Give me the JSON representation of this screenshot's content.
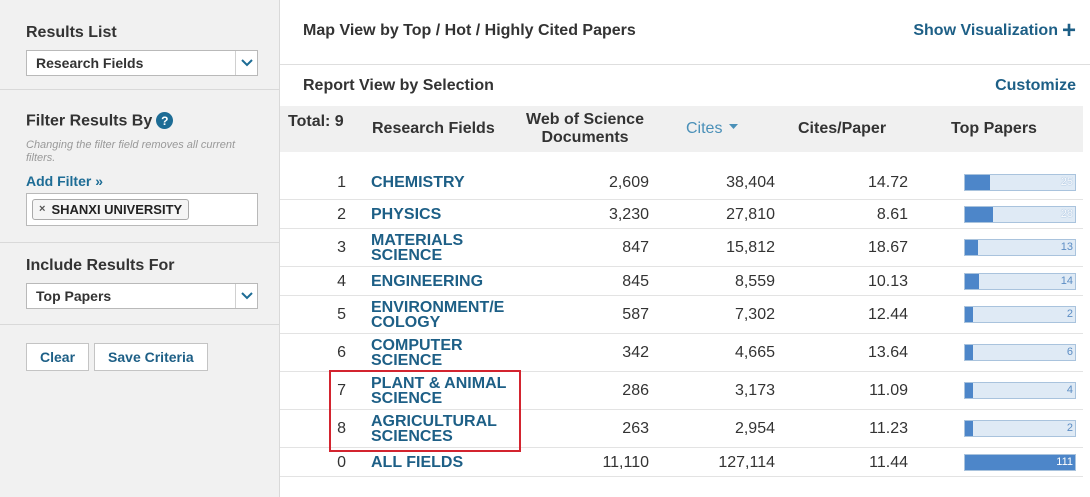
{
  "sidebar": {
    "results_list_title": "Results List",
    "results_list_value": "Research Fields",
    "filter_title": "Filter Results By",
    "help_glyph": "?",
    "filter_note": "Changing the filter field removes all current filters.",
    "add_filter": "Add Filter »",
    "filter_chip": "SHANXI UNIVERSITY",
    "filter_chip_remove": "×",
    "include_title": "Include Results For",
    "include_value": "Top Papers",
    "clear_label": "Clear",
    "save_label": "Save Criteria"
  },
  "main": {
    "map_view_title": "Map View by Top / Hot / Highly Cited Papers",
    "show_visualization": "Show Visualization",
    "plus_glyph": "+",
    "report_view_title": "Report View by Selection",
    "customize": "Customize"
  },
  "table": {
    "total": "Total: 9",
    "headers": {
      "research_fields": "Research Fields",
      "documents_line1": "Web of Science",
      "documents_line2": "Documents",
      "cites": "Cites",
      "cites_per_paper": "Cites/Paper",
      "top_papers": "Top Papers"
    },
    "rows": [
      {
        "rank": "1",
        "field1": "CHEMISTRY",
        "field2": "",
        "docs": "2,609",
        "cites": "38,404",
        "cpp": "14.72",
        "top": "25",
        "bar_fraction": 0.225
      },
      {
        "rank": "2",
        "field1": "PHYSICS",
        "field2": "",
        "docs": "3,230",
        "cites": "27,810",
        "cpp": "8.61",
        "top": "28",
        "bar_fraction": 0.252
      },
      {
        "rank": "3",
        "field1": "MATERIALS",
        "field2": "SCIENCE",
        "docs": "847",
        "cites": "15,812",
        "cpp": "18.67",
        "top": "13",
        "bar_fraction": 0.117
      },
      {
        "rank": "4",
        "field1": "ENGINEERING",
        "field2": "",
        "docs": "845",
        "cites": "8,559",
        "cpp": "10.13",
        "top": "14",
        "bar_fraction": 0.126
      },
      {
        "rank": "5",
        "field1": "ENVIRONMENT/E",
        "field2": "COLOGY",
        "docs": "587",
        "cites": "7,302",
        "cpp": "12.44",
        "top": "2",
        "bar_fraction": 0.018
      },
      {
        "rank": "6",
        "field1": "COMPUTER",
        "field2": "SCIENCE",
        "docs": "342",
        "cites": "4,665",
        "cpp": "13.64",
        "top": "6",
        "bar_fraction": 0.054
      },
      {
        "rank": "7",
        "field1": "PLANT & ANIMAL",
        "field2": "SCIENCE",
        "docs": "286",
        "cites": "3,173",
        "cpp": "11.09",
        "top": "4",
        "bar_fraction": 0.036
      },
      {
        "rank": "8",
        "field1": "AGRICULTURAL",
        "field2": "SCIENCES",
        "docs": "263",
        "cites": "2,954",
        "cpp": "11.23",
        "top": "2",
        "bar_fraction": 0.018
      },
      {
        "rank": "0",
        "field1": "ALL FIELDS",
        "field2": "",
        "docs": "11,110",
        "cites": "127,114",
        "cpp": "11.44",
        "top": "111",
        "bar_fraction": 1.0
      }
    ]
  },
  "colors": {
    "link": "#1d5f86",
    "bar_fill": "#4d86c9",
    "bar_track": "#dfeaf5",
    "highlight": "#d3242f"
  }
}
